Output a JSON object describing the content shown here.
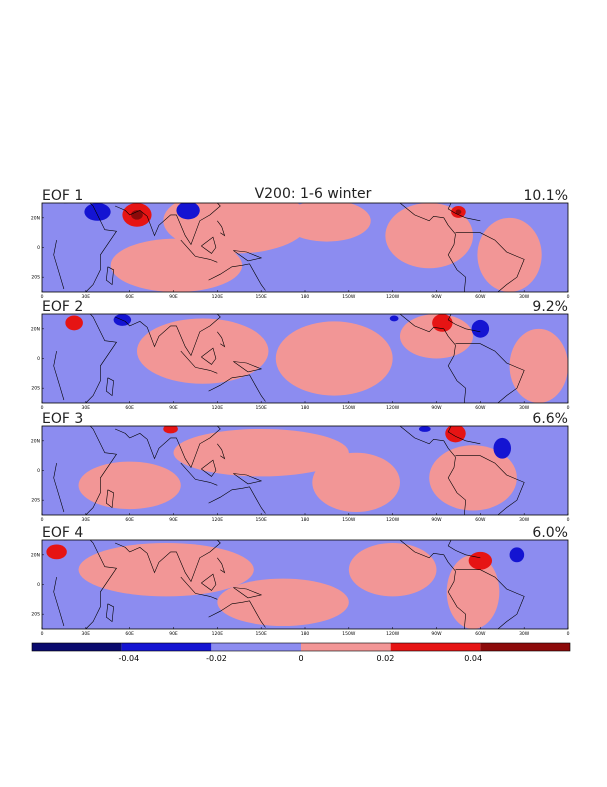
{
  "title": "V200: 1-6 winter",
  "colors": {
    "dark_blue": "#0a0a6e",
    "blue": "#1414d2",
    "light_blue": "#8c8cf0",
    "light_red": "#f29696",
    "red": "#e61414",
    "dark_red": "#8c0a0a",
    "land": "#000000"
  },
  "chart_data": {
    "type": "heatmap",
    "title": "V200: 1-6 winter",
    "variable": "V200",
    "season": "winter",
    "x_ticks": [
      "0",
      "30E",
      "60E",
      "90E",
      "120E",
      "150E",
      "180",
      "150W",
      "120W",
      "90W",
      "60W",
      "30W",
      "0"
    ],
    "y_ticks": [
      "20N",
      "0",
      "20S"
    ],
    "xlim": [
      0,
      360
    ],
    "ylim": [
      -30,
      30
    ],
    "panels": [
      {
        "label": "EOF 1",
        "variance": "10.1%",
        "blobs": [
          {
            "lon": 38,
            "lat": 24,
            "rx": 9,
            "ry": 6,
            "cls": 1,
            "strong": false
          },
          {
            "lon": 65,
            "lat": 22,
            "rx": 10,
            "ry": 8,
            "cls": 4,
            "strong": true
          },
          {
            "lon": 100,
            "lat": 25,
            "rx": 8,
            "ry": 6,
            "cls": 1,
            "strong": false
          },
          {
            "lon": 133,
            "lat": 18,
            "rx": 50,
            "ry": 22,
            "cls": 3
          },
          {
            "lon": 92,
            "lat": -12,
            "rx": 45,
            "ry": 18,
            "cls": 3
          },
          {
            "lon": 195,
            "lat": 18,
            "rx": 30,
            "ry": 14,
            "cls": 3
          },
          {
            "lon": 265,
            "lat": 8,
            "rx": 30,
            "ry": 22,
            "cls": 3
          },
          {
            "lon": 320,
            "lat": -5,
            "rx": 22,
            "ry": 25,
            "cls": 3
          },
          {
            "lon": 285,
            "lat": 24,
            "rx": 5,
            "ry": 4,
            "cls": 4,
            "strong": true
          }
        ]
      },
      {
        "label": "EOF 2",
        "variance": "9.2%",
        "blobs": [
          {
            "lon": 22,
            "lat": 24,
            "rx": 6,
            "ry": 5,
            "cls": 4,
            "strong": false
          },
          {
            "lon": 55,
            "lat": 26,
            "rx": 6,
            "ry": 4,
            "cls": 1,
            "strong": false
          },
          {
            "lon": 110,
            "lat": 5,
            "rx": 45,
            "ry": 22,
            "cls": 3
          },
          {
            "lon": 200,
            "lat": 0,
            "rx": 40,
            "ry": 25,
            "cls": 3
          },
          {
            "lon": 270,
            "lat": 15,
            "rx": 25,
            "ry": 15,
            "cls": 3
          },
          {
            "lon": 340,
            "lat": -5,
            "rx": 20,
            "ry": 25,
            "cls": 3
          },
          {
            "lon": 274,
            "lat": 24,
            "rx": 7,
            "ry": 6,
            "cls": 4,
            "strong": false
          },
          {
            "lon": 300,
            "lat": 20,
            "rx": 6,
            "ry": 6,
            "cls": 1,
            "strong": false
          },
          {
            "lon": 241,
            "lat": 27,
            "rx": 3,
            "ry": 2,
            "cls": 1,
            "strong": false
          }
        ]
      },
      {
        "label": "EOF 3",
        "variance": "6.6%",
        "blobs": [
          {
            "lon": 88,
            "lat": 28,
            "rx": 5,
            "ry": 3,
            "cls": 4,
            "strong": false
          },
          {
            "lon": 150,
            "lat": 12,
            "rx": 60,
            "ry": 16,
            "cls": 3
          },
          {
            "lon": 60,
            "lat": -10,
            "rx": 35,
            "ry": 16,
            "cls": 3
          },
          {
            "lon": 215,
            "lat": -8,
            "rx": 30,
            "ry": 20,
            "cls": 3
          },
          {
            "lon": 295,
            "lat": -5,
            "rx": 30,
            "ry": 22,
            "cls": 3
          },
          {
            "lon": 283,
            "lat": 25,
            "rx": 7,
            "ry": 6,
            "cls": 4,
            "strong": false
          },
          {
            "lon": 315,
            "lat": 15,
            "rx": 6,
            "ry": 7,
            "cls": 1,
            "strong": false
          },
          {
            "lon": 262,
            "lat": 28,
            "rx": 4,
            "ry": 2,
            "cls": 1,
            "strong": false
          }
        ]
      },
      {
        "label": "EOF 4",
        "variance": "6.0%",
        "blobs": [
          {
            "lon": 10,
            "lat": 22,
            "rx": 7,
            "ry": 5,
            "cls": 4,
            "strong": false
          },
          {
            "lon": 85,
            "lat": 10,
            "rx": 60,
            "ry": 18,
            "cls": 3
          },
          {
            "lon": 165,
            "lat": -12,
            "rx": 45,
            "ry": 16,
            "cls": 3
          },
          {
            "lon": 240,
            "lat": 10,
            "rx": 30,
            "ry": 18,
            "cls": 3
          },
          {
            "lon": 295,
            "lat": -5,
            "rx": 18,
            "ry": 25,
            "cls": 3
          },
          {
            "lon": 300,
            "lat": 16,
            "rx": 8,
            "ry": 6,
            "cls": 4,
            "strong": false
          },
          {
            "lon": 325,
            "lat": 20,
            "rx": 5,
            "ry": 5,
            "cls": 1,
            "strong": false
          }
        ]
      }
    ],
    "colorbar": {
      "levels": [
        -0.05,
        -0.04,
        -0.03,
        -0.02,
        -0.01,
        0,
        0.01,
        0.02,
        0.03,
        0.04,
        0.05
      ],
      "tick_values": [
        -0.04,
        -0.02,
        0,
        0.02,
        0.04
      ],
      "tick_labels": [
        "-0.04",
        "-0.02",
        "0",
        "0.02",
        "0.04"
      ],
      "colors": [
        "#0a0a6e",
        "#1414d2",
        "#8c8cf0",
        "#f29696",
        "#e61414",
        "#8c0a0a"
      ]
    }
  }
}
